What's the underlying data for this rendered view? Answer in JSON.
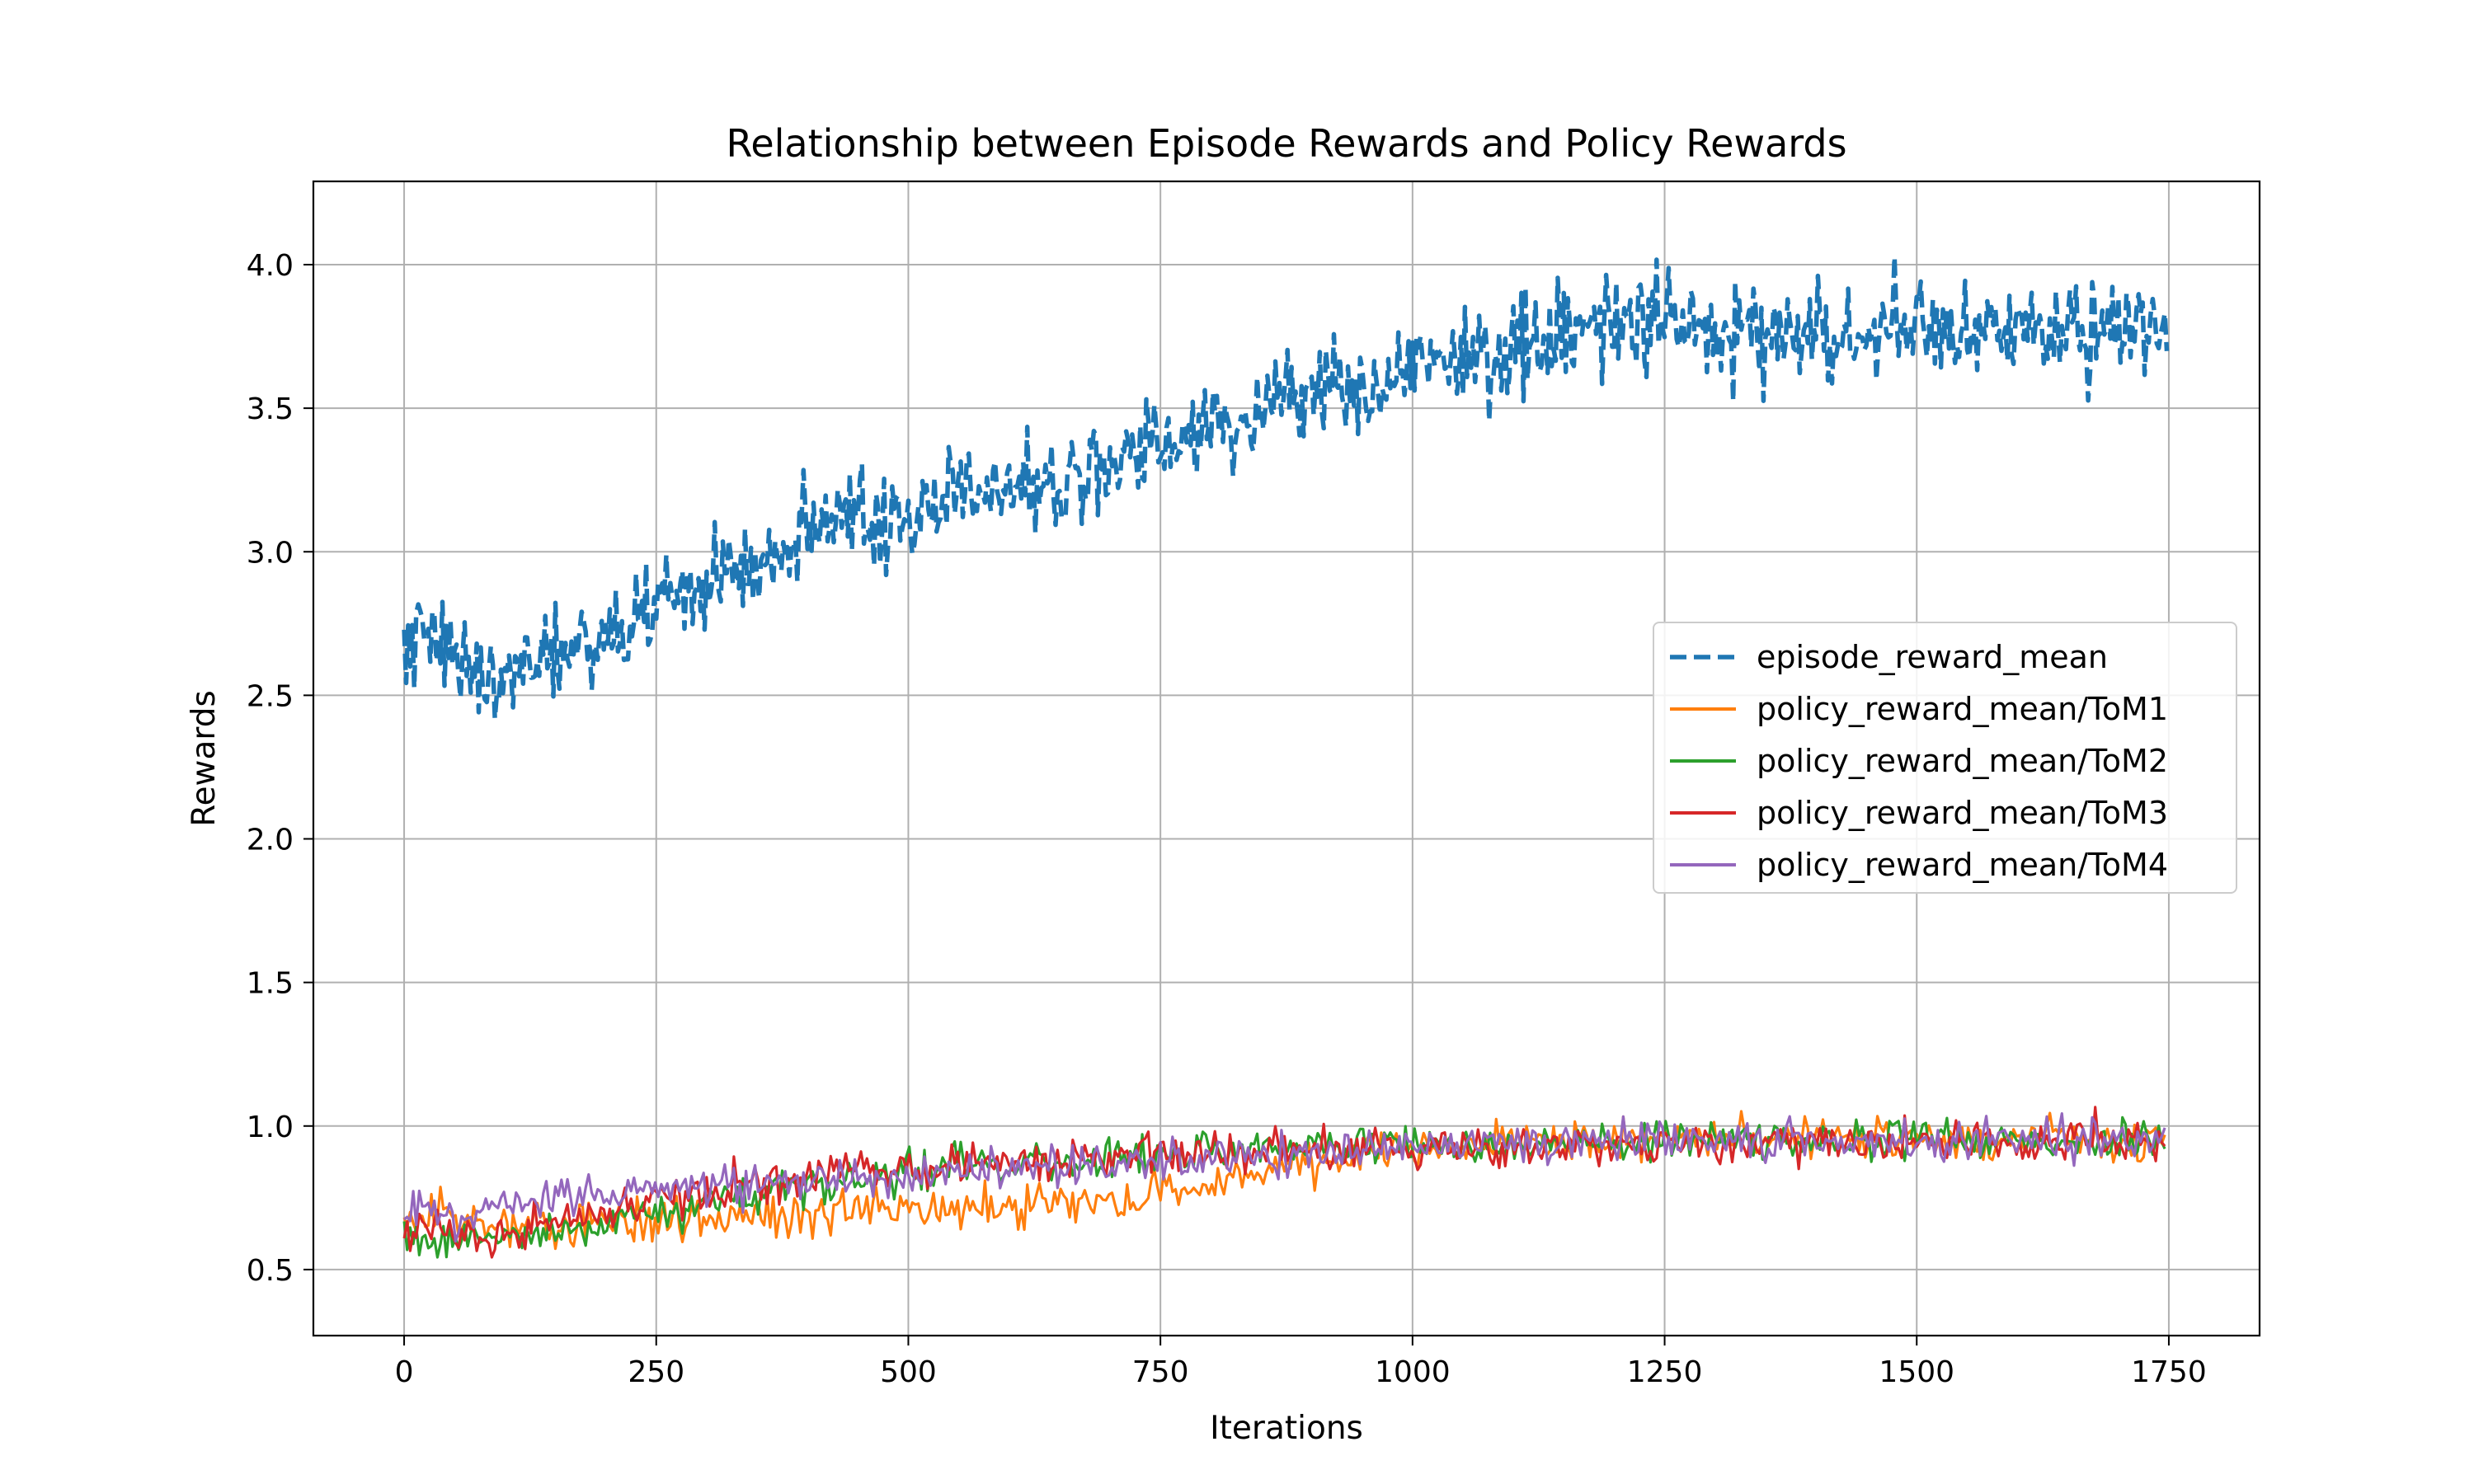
{
  "chart_data": {
    "type": "line",
    "title": "Relationship between Episode Rewards and Policy Rewards",
    "xlabel": "Iterations",
    "ylabel": "Rewards",
    "xlim": [
      -90,
      1840
    ],
    "ylim": [
      0.27,
      4.29
    ],
    "xticks": [
      0,
      250,
      500,
      750,
      1000,
      1250,
      1500,
      1750
    ],
    "yticks": [
      0.5,
      1.0,
      1.5,
      2.0,
      2.5,
      3.0,
      3.5,
      4.0
    ],
    "xtick_labels": [
      "0",
      "250",
      "500",
      "750",
      "1000",
      "1250",
      "1500",
      "1750"
    ],
    "ytick_labels": [
      "0.5",
      "1.0",
      "1.5",
      "2.0",
      "2.5",
      "3.0",
      "3.5",
      "4.0"
    ],
    "grid": true,
    "legend_position": "center-right",
    "series": [
      {
        "name": "episode_reward_mean",
        "color": "#1f77b4",
        "style": "dashed",
        "x": [
          0,
          25,
          50,
          75,
          100,
          125,
          150,
          175,
          200,
          250,
          300,
          350,
          400,
          450,
          500,
          550,
          600,
          650,
          700,
          750,
          800,
          850,
          900,
          950,
          1000,
          1050,
          1100,
          1150,
          1200,
          1250,
          1300,
          1350,
          1400,
          1450,
          1500,
          1550,
          1600,
          1650,
          1700,
          1750
        ],
        "y": [
          2.65,
          2.75,
          2.6,
          2.55,
          2.6,
          2.62,
          2.65,
          2.68,
          2.7,
          2.8,
          2.9,
          2.95,
          3.05,
          3.1,
          3.15,
          3.2,
          3.22,
          3.25,
          3.3,
          3.38,
          3.45,
          3.5,
          3.55,
          3.6,
          3.65,
          3.7,
          3.72,
          3.75,
          3.78,
          3.8,
          3.78,
          3.76,
          3.77,
          3.76,
          3.75,
          3.76,
          3.77,
          3.78,
          3.76,
          3.77
        ]
      },
      {
        "name": "policy_reward_mean/ToM1",
        "color": "#ff7f0e",
        "style": "solid",
        "x": [
          0,
          25,
          50,
          75,
          100,
          125,
          150,
          175,
          200,
          250,
          300,
          350,
          400,
          450,
          500,
          550,
          600,
          650,
          700,
          750,
          800,
          850,
          900,
          950,
          1000,
          1050,
          1100,
          1150,
          1200,
          1250,
          1300,
          1350,
          1400,
          1450,
          1500,
          1550,
          1600,
          1650,
          1700,
          1750
        ],
        "y": [
          0.68,
          0.7,
          0.68,
          0.66,
          0.65,
          0.66,
          0.66,
          0.66,
          0.67,
          0.67,
          0.68,
          0.68,
          0.69,
          0.7,
          0.7,
          0.71,
          0.72,
          0.73,
          0.74,
          0.76,
          0.8,
          0.84,
          0.87,
          0.89,
          0.91,
          0.93,
          0.94,
          0.95,
          0.95,
          0.96,
          0.96,
          0.96,
          0.96,
          0.95,
          0.95,
          0.95,
          0.95,
          0.96,
          0.95,
          0.95
        ]
      },
      {
        "name": "policy_reward_mean/ToM2",
        "color": "#2ca02c",
        "style": "solid",
        "x": [
          0,
          25,
          50,
          75,
          100,
          125,
          150,
          175,
          200,
          250,
          300,
          350,
          400,
          450,
          500,
          550,
          600,
          650,
          700,
          750,
          800,
          850,
          900,
          950,
          1000,
          1050,
          1100,
          1150,
          1200,
          1250,
          1300,
          1350,
          1400,
          1450,
          1500,
          1550,
          1600,
          1650,
          1700,
          1750
        ],
        "y": [
          0.6,
          0.63,
          0.62,
          0.6,
          0.6,
          0.61,
          0.62,
          0.63,
          0.66,
          0.7,
          0.73,
          0.76,
          0.79,
          0.82,
          0.84,
          0.86,
          0.87,
          0.88,
          0.89,
          0.9,
          0.91,
          0.92,
          0.92,
          0.93,
          0.94,
          0.94,
          0.94,
          0.94,
          0.95,
          0.95,
          0.95,
          0.95,
          0.95,
          0.95,
          0.95,
          0.95,
          0.95,
          0.95,
          0.95,
          0.95
        ]
      },
      {
        "name": "policy_reward_mean/ToM3",
        "color": "#d62728",
        "style": "solid",
        "x": [
          0,
          25,
          50,
          75,
          100,
          125,
          150,
          175,
          200,
          250,
          300,
          350,
          400,
          450,
          500,
          550,
          600,
          650,
          700,
          750,
          800,
          850,
          900,
          950,
          1000,
          1050,
          1100,
          1150,
          1200,
          1250,
          1300,
          1350,
          1400,
          1450,
          1500,
          1550,
          1600,
          1650,
          1700,
          1750
        ],
        "y": [
          0.65,
          0.65,
          0.6,
          0.6,
          0.62,
          0.65,
          0.67,
          0.69,
          0.71,
          0.75,
          0.78,
          0.8,
          0.83,
          0.85,
          0.86,
          0.87,
          0.88,
          0.88,
          0.89,
          0.9,
          0.91,
          0.91,
          0.92,
          0.92,
          0.93,
          0.93,
          0.93,
          0.94,
          0.94,
          0.95,
          0.94,
          0.95,
          0.95,
          0.95,
          0.95,
          0.94,
          0.95,
          0.95,
          0.95,
          0.95
        ]
      },
      {
        "name": "policy_reward_mean/ToM4",
        "color": "#9467bd",
        "style": "solid",
        "x": [
          0,
          25,
          50,
          75,
          100,
          125,
          150,
          175,
          200,
          250,
          300,
          350,
          400,
          450,
          500,
          550,
          600,
          650,
          700,
          750,
          800,
          850,
          900,
          950,
          1000,
          1050,
          1100,
          1150,
          1200,
          1250,
          1300,
          1350,
          1400,
          1450,
          1500,
          1550,
          1600,
          1650,
          1700,
          1750
        ],
        "y": [
          0.7,
          0.72,
          0.68,
          0.68,
          0.72,
          0.74,
          0.75,
          0.76,
          0.77,
          0.78,
          0.79,
          0.8,
          0.81,
          0.82,
          0.83,
          0.84,
          0.85,
          0.86,
          0.87,
          0.88,
          0.89,
          0.9,
          0.91,
          0.92,
          0.93,
          0.93,
          0.94,
          0.94,
          0.95,
          0.96,
          0.95,
          0.95,
          0.95,
          0.95,
          0.95,
          0.95,
          0.95,
          0.95,
          0.95,
          0.95
        ]
      }
    ]
  }
}
